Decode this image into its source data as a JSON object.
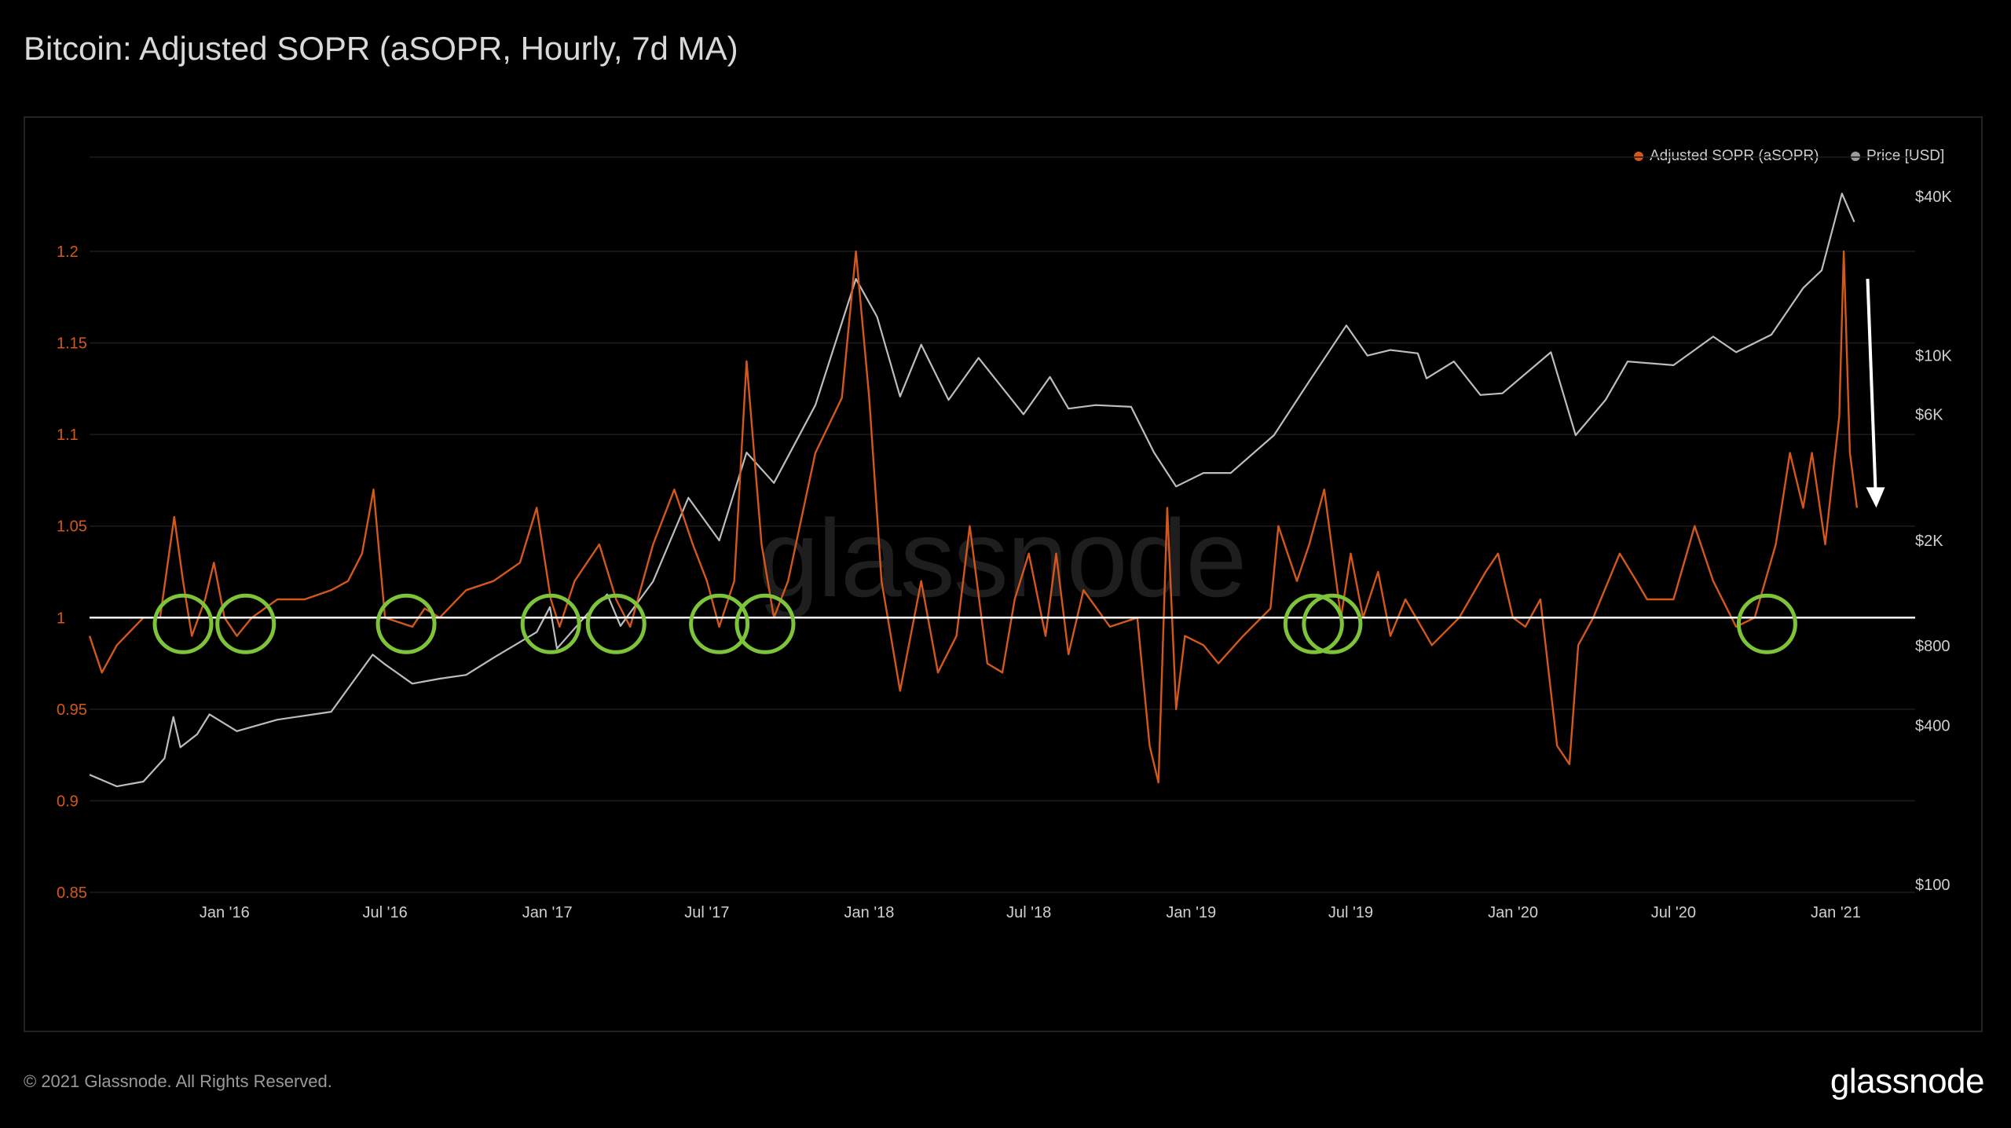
{
  "title": "Bitcoin: Adjusted SOPR (aSOPR, Hourly, 7d MA)",
  "footer": {
    "copyright": "© 2021 Glassnode. All Rights Reserved.",
    "logo": "glassnode"
  },
  "watermark": "glassnode",
  "colors": {
    "asopr": "#d4581a",
    "price": "#bdbdbd",
    "baseline": "#ffffff",
    "circles": "#7ec43a",
    "arrow": "#ffffff",
    "left_axis": "#d4581a",
    "right_axis": "#cfcfcf"
  },
  "chart_data": {
    "type": "line",
    "title": "Bitcoin: Adjusted SOPR (aSOPR, Hourly, 7d MA)",
    "legend": [
      "Adjusted SOPR (aSOPR)",
      "Price [USD]"
    ],
    "legend_position": "top-right",
    "x_ticks": [
      "Jan '16",
      "Jul '16",
      "Jan '17",
      "Jul '17",
      "Jan '18",
      "Jul '18",
      "Jan '19",
      "Jul '19",
      "Jan '20",
      "Jul '20",
      "Jan '21"
    ],
    "x_range": [
      "2015-08-01",
      "2021-04-01"
    ],
    "y_left": {
      "label": "aSOPR",
      "ticks": [
        "1.2",
        "1.15",
        "1.1",
        "1.05",
        "1",
        "0.95",
        "0.9",
        "0.85"
      ],
      "range": [
        0.85,
        1.2
      ]
    },
    "y_right": {
      "label": "Price [USD]",
      "scale": "log",
      "ticks": [
        "$40K",
        "$10K",
        "$6K",
        "$2K",
        "$800",
        "$400",
        "$100"
      ],
      "range": [
        100,
        40000
      ]
    },
    "baseline": 1.0,
    "series": [
      {
        "name": "Adjusted SOPR (aSOPR)",
        "axis": "left",
        "points": [
          [
            "2015-08-01",
            0.99
          ],
          [
            "2015-08-15",
            0.97
          ],
          [
            "2015-09-01",
            0.985
          ],
          [
            "2015-10-01",
            1.0
          ],
          [
            "2015-10-20",
            1.0
          ],
          [
            "2015-11-05",
            1.055
          ],
          [
            "2015-11-15",
            1.02
          ],
          [
            "2015-11-25",
            0.99
          ],
          [
            "2015-12-10",
            1.01
          ],
          [
            "2015-12-20",
            1.03
          ],
          [
            "2016-01-01",
            1.0
          ],
          [
            "2016-01-15",
            0.99
          ],
          [
            "2016-02-01",
            1.0
          ],
          [
            "2016-03-01",
            1.01
          ],
          [
            "2016-04-01",
            1.01
          ],
          [
            "2016-05-01",
            1.015
          ],
          [
            "2016-05-20",
            1.02
          ],
          [
            "2016-06-05",
            1.035
          ],
          [
            "2016-06-18",
            1.07
          ],
          [
            "2016-07-01",
            1.0
          ],
          [
            "2016-08-01",
            0.995
          ],
          [
            "2016-08-15",
            1.005
          ],
          [
            "2016-09-01",
            1.0
          ],
          [
            "2016-10-01",
            1.015
          ],
          [
            "2016-11-01",
            1.02
          ],
          [
            "2016-12-01",
            1.03
          ],
          [
            "2016-12-20",
            1.06
          ],
          [
            "2017-01-05",
            1.01
          ],
          [
            "2017-01-15",
            0.995
          ],
          [
            "2017-02-01",
            1.02
          ],
          [
            "2017-03-01",
            1.04
          ],
          [
            "2017-03-20",
            1.01
          ],
          [
            "2017-04-05",
            0.995
          ],
          [
            "2017-05-01",
            1.04
          ],
          [
            "2017-05-25",
            1.07
          ],
          [
            "2017-06-15",
            1.04
          ],
          [
            "2017-07-01",
            1.02
          ],
          [
            "2017-07-15",
            0.995
          ],
          [
            "2017-08-01",
            1.02
          ],
          [
            "2017-08-15",
            1.14
          ],
          [
            "2017-09-01",
            1.04
          ],
          [
            "2017-09-15",
            1.0
          ],
          [
            "2017-10-01",
            1.02
          ],
          [
            "2017-11-01",
            1.09
          ],
          [
            "2017-12-01",
            1.12
          ],
          [
            "2017-12-17",
            1.2
          ],
          [
            "2018-01-01",
            1.12
          ],
          [
            "2018-01-15",
            1.02
          ],
          [
            "2018-02-05",
            0.96
          ],
          [
            "2018-03-01",
            1.02
          ],
          [
            "2018-03-20",
            0.97
          ],
          [
            "2018-04-10",
            0.99
          ],
          [
            "2018-04-25",
            1.05
          ],
          [
            "2018-05-15",
            0.975
          ],
          [
            "2018-06-01",
            0.97
          ],
          [
            "2018-06-15",
            1.01
          ],
          [
            "2018-07-01",
            1.035
          ],
          [
            "2018-07-20",
            0.99
          ],
          [
            "2018-08-01",
            1.035
          ],
          [
            "2018-08-15",
            0.98
          ],
          [
            "2018-09-01",
            1.015
          ],
          [
            "2018-10-01",
            0.995
          ],
          [
            "2018-11-01",
            1.0
          ],
          [
            "2018-11-15",
            0.93
          ],
          [
            "2018-11-25",
            0.91
          ],
          [
            "2018-12-05",
            1.06
          ],
          [
            "2018-12-15",
            0.95
          ],
          [
            "2018-12-25",
            0.99
          ],
          [
            "2019-01-15",
            0.985
          ],
          [
            "2019-02-01",
            0.975
          ],
          [
            "2019-03-01",
            0.99
          ],
          [
            "2019-04-01",
            1.005
          ],
          [
            "2019-04-10",
            1.05
          ],
          [
            "2019-05-01",
            1.02
          ],
          [
            "2019-05-15",
            1.04
          ],
          [
            "2019-06-01",
            1.07
          ],
          [
            "2019-06-20",
            1.0
          ],
          [
            "2019-07-01",
            1.035
          ],
          [
            "2019-07-15",
            1.0
          ],
          [
            "2019-08-01",
            1.025
          ],
          [
            "2019-08-15",
            0.99
          ],
          [
            "2019-09-01",
            1.01
          ],
          [
            "2019-10-01",
            0.985
          ],
          [
            "2019-11-01",
            1.0
          ],
          [
            "2019-12-01",
            1.025
          ],
          [
            "2019-12-15",
            1.035
          ],
          [
            "2020-01-01",
            1.0
          ],
          [
            "2020-01-15",
            0.995
          ],
          [
            "2020-02-01",
            1.01
          ],
          [
            "2020-02-20",
            0.93
          ],
          [
            "2020-03-05",
            0.92
          ],
          [
            "2020-03-15",
            0.985
          ],
          [
            "2020-04-01",
            1.0
          ],
          [
            "2020-05-01",
            1.035
          ],
          [
            "2020-05-20",
            1.02
          ],
          [
            "2020-06-01",
            1.01
          ],
          [
            "2020-07-01",
            1.01
          ],
          [
            "2020-07-25",
            1.05
          ],
          [
            "2020-08-15",
            1.02
          ],
          [
            "2020-09-10",
            0.995
          ],
          [
            "2020-10-01",
            1.0
          ],
          [
            "2020-10-25",
            1.04
          ],
          [
            "2020-11-10",
            1.09
          ],
          [
            "2020-11-25",
            1.06
          ],
          [
            "2020-12-05",
            1.09
          ],
          [
            "2020-12-20",
            1.04
          ],
          [
            "2021-01-05",
            1.11
          ],
          [
            "2021-01-10",
            1.2
          ],
          [
            "2021-01-17",
            1.09
          ],
          [
            "2021-01-25",
            1.06
          ]
        ]
      },
      {
        "name": "Price [USD]",
        "axis": "right",
        "points": [
          [
            "2015-08-01",
            260
          ],
          [
            "2015-09-01",
            235
          ],
          [
            "2015-10-01",
            245
          ],
          [
            "2015-10-25",
            300
          ],
          [
            "2015-11-04",
            430
          ],
          [
            "2015-11-12",
            330
          ],
          [
            "2015-12-01",
            370
          ],
          [
            "2015-12-15",
            440
          ],
          [
            "2016-01-15",
            380
          ],
          [
            "2016-03-01",
            420
          ],
          [
            "2016-05-01",
            450
          ],
          [
            "2016-06-17",
            740
          ],
          [
            "2016-07-01",
            680
          ],
          [
            "2016-08-01",
            575
          ],
          [
            "2016-09-01",
            600
          ],
          [
            "2016-10-01",
            620
          ],
          [
            "2016-11-01",
            720
          ],
          [
            "2016-12-20",
            900
          ],
          [
            "2017-01-04",
            1120
          ],
          [
            "2017-01-12",
            780
          ],
          [
            "2017-02-15",
            1050
          ],
          [
            "2017-03-10",
            1250
          ],
          [
            "2017-03-25",
            950
          ],
          [
            "2017-05-01",
            1400
          ],
          [
            "2017-06-10",
            2900
          ],
          [
            "2017-07-15",
            2000
          ],
          [
            "2017-08-15",
            4300
          ],
          [
            "2017-09-15",
            3300
          ],
          [
            "2017-11-01",
            6500
          ],
          [
            "2017-12-17",
            19500
          ],
          [
            "2018-01-10",
            14000
          ],
          [
            "2018-02-05",
            7000
          ],
          [
            "2018-03-01",
            11000
          ],
          [
            "2018-04-01",
            6800
          ],
          [
            "2018-05-05",
            9800
          ],
          [
            "2018-06-25",
            6000
          ],
          [
            "2018-07-25",
            8300
          ],
          [
            "2018-08-15",
            6300
          ],
          [
            "2018-09-15",
            6500
          ],
          [
            "2018-10-25",
            6400
          ],
          [
            "2018-11-20",
            4300
          ],
          [
            "2018-12-15",
            3200
          ],
          [
            "2019-01-15",
            3600
          ],
          [
            "2019-02-15",
            3600
          ],
          [
            "2019-04-05",
            5000
          ],
          [
            "2019-05-15",
            8000
          ],
          [
            "2019-06-26",
            13000
          ],
          [
            "2019-07-20",
            10000
          ],
          [
            "2019-08-15",
            10500
          ],
          [
            "2019-09-15",
            10200
          ],
          [
            "2019-09-25",
            8200
          ],
          [
            "2019-10-26",
            9500
          ],
          [
            "2019-11-25",
            7100
          ],
          [
            "2019-12-20",
            7200
          ],
          [
            "2020-02-13",
            10300
          ],
          [
            "2020-03-12",
            5000
          ],
          [
            "2020-04-15",
            6800
          ],
          [
            "2020-05-10",
            9500
          ],
          [
            "2020-07-01",
            9200
          ],
          [
            "2020-08-15",
            11800
          ],
          [
            "2020-09-10",
            10300
          ],
          [
            "2020-10-20",
            12000
          ],
          [
            "2020-11-25",
            18000
          ],
          [
            "2020-12-16",
            21000
          ],
          [
            "2021-01-08",
            41000
          ],
          [
            "2021-01-22",
            32000
          ]
        ]
      }
    ],
    "annotations": {
      "highlight_circles": [
        "2015-11-15",
        "2016-01-25",
        "2016-07-25",
        "2017-01-05",
        "2017-03-20",
        "2017-07-15",
        "2017-09-05",
        "2019-05-20",
        "2019-06-10",
        "2020-10-15"
      ],
      "down_arrow": {
        "date": "2021-02-15",
        "from": 1.185,
        "to": 1.06
      }
    }
  }
}
